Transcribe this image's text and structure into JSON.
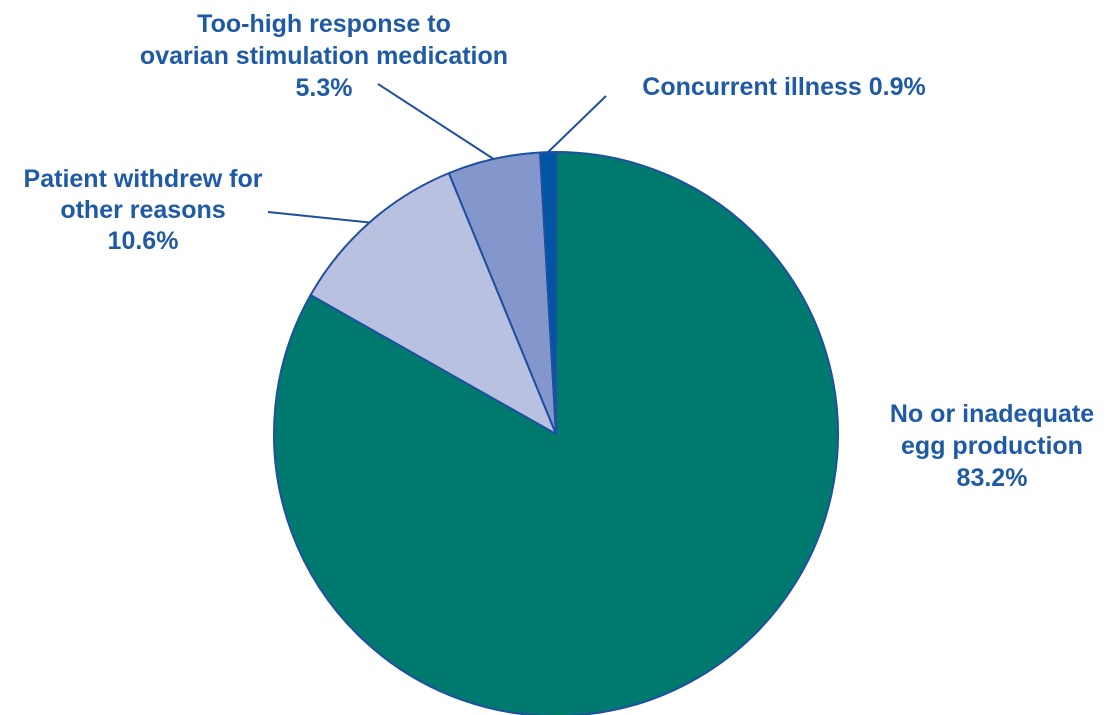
{
  "chart_data": {
    "type": "pie",
    "title": "",
    "slices": [
      {
        "label": [
          "No or inadequate",
          "egg production",
          "83.2%"
        ],
        "value": 83.2,
        "color": "#007A6E"
      },
      {
        "label": [
          "Patient withdrew for",
          "other reasons",
          "10.6%"
        ],
        "value": 10.6,
        "color": "#B8C2E0"
      },
      {
        "label": [
          "Too-high response to",
          "ovarian stimulation medication",
          "5.3%"
        ],
        "value": 5.3,
        "color": "#8497CC"
      },
      {
        "label": [
          "Concurrent illness 0.9%"
        ],
        "value": 0.9,
        "color": "#0055A5"
      }
    ],
    "outline_color": "#1F4FA0",
    "label_color": "#1F5AA6"
  }
}
